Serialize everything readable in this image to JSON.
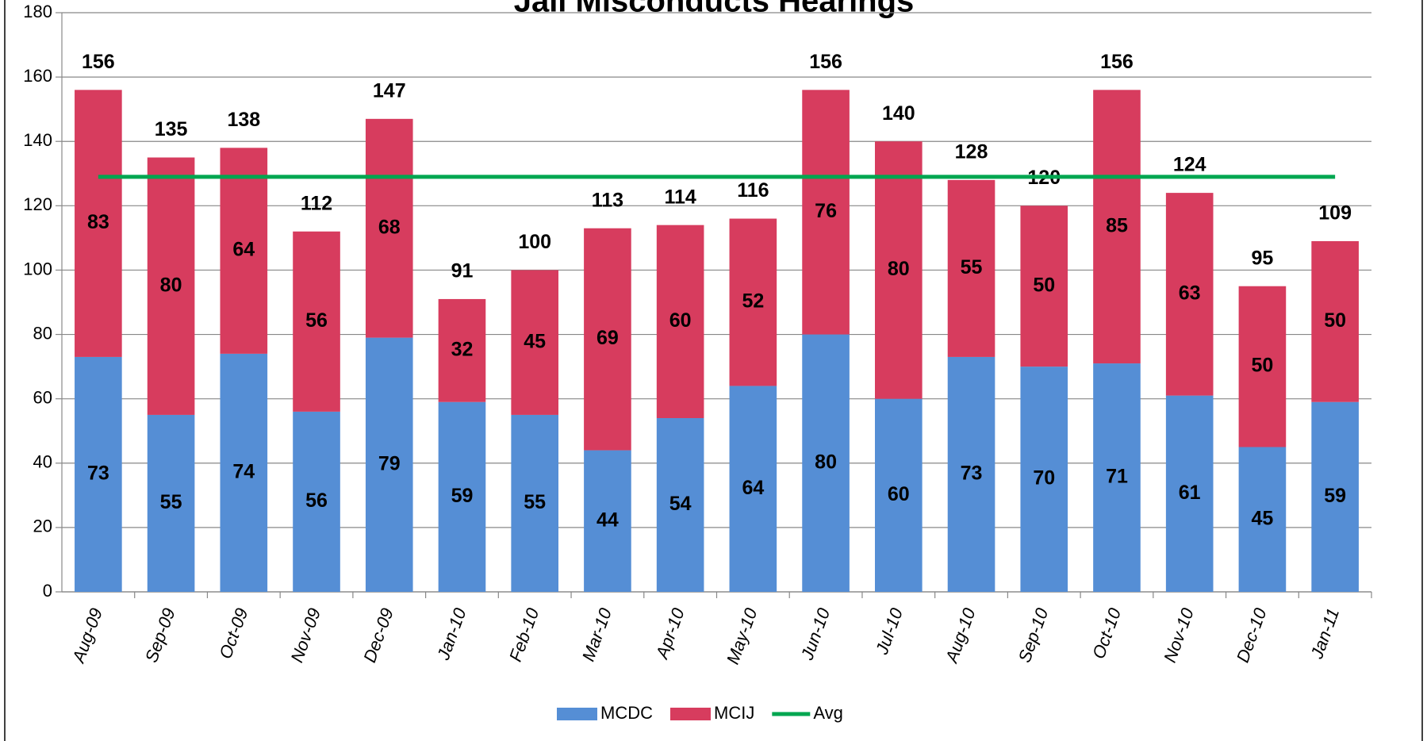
{
  "chart_data": {
    "type": "stacked_bar",
    "title": "Jail Misconducts Hearings",
    "categories": [
      "Aug-09",
      "Sep-09",
      "Oct-09",
      "Nov-09",
      "Dec-09",
      "Jan-10",
      "Feb-10",
      "Mar-10",
      "Apr-10",
      "May-10",
      "Jun-10",
      "Jul-10",
      "Aug-10",
      "Sep-10",
      "Oct-10",
      "Nov-10",
      "Dec-10",
      "Jan-11"
    ],
    "series": [
      {
        "name": "MCDC",
        "color": "#558ed5",
        "values": [
          73,
          55,
          74,
          56,
          79,
          59,
          55,
          44,
          54,
          64,
          80,
          60,
          73,
          70,
          71,
          61,
          45,
          59
        ]
      },
      {
        "name": "MCIJ",
        "color": "#d73c5e",
        "values": [
          83,
          80,
          64,
          56,
          68,
          32,
          45,
          69,
          60,
          52,
          76,
          80,
          55,
          50,
          85,
          63,
          50,
          50
        ]
      },
      {
        "name": "Avg",
        "type": "line",
        "color": "#00a650",
        "values": [
          129,
          129,
          129,
          129,
          129,
          129,
          129,
          129,
          129,
          129,
          129,
          129,
          129,
          129,
          129,
          129,
          129,
          129
        ]
      }
    ],
    "totals": [
      156,
      135,
      138,
      112,
      147,
      91,
      100,
      113,
      114,
      116,
      156,
      140,
      128,
      120,
      156,
      124,
      95,
      109
    ],
    "ylim": [
      0,
      180
    ],
    "yticks": [
      0,
      20,
      40,
      60,
      80,
      100,
      120,
      140,
      160,
      180
    ],
    "grid": true,
    "legend": "bottom"
  }
}
